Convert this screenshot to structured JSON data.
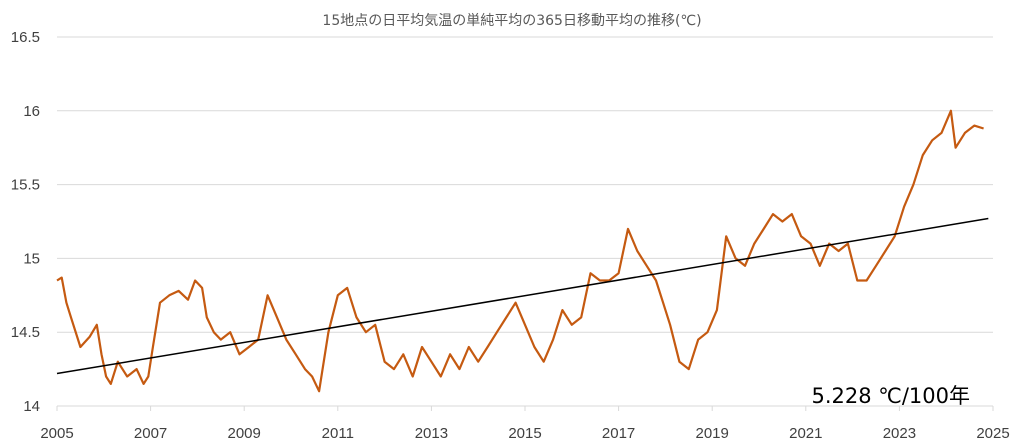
{
  "chart_data": {
    "type": "line",
    "title": "15地点の日平均気温の単純平均の365日移動平均の推移(℃)",
    "xlabel": "",
    "ylabel": "",
    "xlim": [
      2005,
      2025
    ],
    "ylim": [
      14,
      16.5
    ],
    "x_ticks": [
      "2005",
      "2007",
      "2009",
      "2011",
      "2013",
      "2015",
      "2017",
      "2019",
      "2021",
      "2023",
      "2025"
    ],
    "y_ticks": [
      "14",
      "14.5",
      "15",
      "15.5",
      "16",
      "16.5"
    ],
    "grid": true,
    "legend": "none",
    "annotation": "5.228 ℃/100年",
    "series": [
      {
        "color": "#c55a11",
        "x": [
          2005.0,
          2005.1,
          2005.2,
          2005.3,
          2005.5,
          2005.7,
          2005.85,
          2005.95,
          2006.05,
          2006.15,
          2006.3,
          2006.5,
          2006.7,
          2006.85,
          2006.95,
          2007.05,
          2007.2,
          2007.4,
          2007.6,
          2007.8,
          2007.95,
          2008.1,
          2008.2,
          2008.35,
          2008.5,
          2008.7,
          2008.9,
          2009.1,
          2009.3,
          2009.5,
          2009.7,
          2009.9,
          2010.1,
          2010.3,
          2010.45,
          2010.6,
          2010.8,
          2011.0,
          2011.2,
          2011.4,
          2011.6,
          2011.8,
          2012.0,
          2012.2,
          2012.4,
          2012.6,
          2012.8,
          2013.0,
          2013.2,
          2013.4,
          2013.6,
          2013.8,
          2014.0,
          2014.2,
          2014.4,
          2014.6,
          2014.8,
          2015.0,
          2015.2,
          2015.4,
          2015.6,
          2015.8,
          2016.0,
          2016.2,
          2016.4,
          2016.6,
          2016.8,
          2017.0,
          2017.2,
          2017.4,
          2017.6,
          2017.8,
          2017.95,
          2018.1,
          2018.3,
          2018.5,
          2018.7,
          2018.9,
          2019.1,
          2019.3,
          2019.5,
          2019.7,
          2019.9,
          2020.1,
          2020.3,
          2020.5,
          2020.7,
          2020.9,
          2021.1,
          2021.3,
          2021.5,
          2021.7,
          2021.9,
          2022.1,
          2022.3,
          2022.5,
          2022.7,
          2022.9,
          2023.1,
          2023.3,
          2023.5,
          2023.7,
          2023.9,
          2024.1,
          2024.2,
          2024.4,
          2024.6,
          2024.8
        ],
        "values": [
          14.85,
          14.87,
          14.7,
          14.6,
          14.4,
          14.47,
          14.55,
          14.35,
          14.2,
          14.15,
          14.3,
          14.2,
          14.25,
          14.15,
          14.2,
          14.4,
          14.7,
          14.75,
          14.78,
          14.72,
          14.85,
          14.8,
          14.6,
          14.5,
          14.45,
          14.5,
          14.35,
          14.4,
          14.45,
          14.75,
          14.6,
          14.45,
          14.35,
          14.25,
          14.2,
          14.1,
          14.5,
          14.75,
          14.8,
          14.6,
          14.5,
          14.55,
          14.3,
          14.25,
          14.35,
          14.2,
          14.4,
          14.3,
          14.2,
          14.35,
          14.25,
          14.4,
          14.3,
          14.4,
          14.5,
          14.6,
          14.7,
          14.55,
          14.4,
          14.3,
          14.45,
          14.65,
          14.55,
          14.6,
          14.9,
          14.85,
          14.85,
          14.9,
          15.2,
          15.05,
          14.95,
          14.85,
          14.7,
          14.55,
          14.3,
          14.25,
          14.45,
          14.5,
          14.65,
          15.15,
          15.0,
          14.95,
          15.1,
          15.2,
          15.3,
          15.25,
          15.3,
          15.15,
          15.1,
          14.95,
          15.1,
          15.05,
          15.1,
          14.85,
          14.85,
          14.95,
          15.05,
          15.15,
          15.35,
          15.5,
          15.7,
          15.8,
          15.85,
          16.0,
          15.75,
          15.85,
          15.9,
          15.88
        ]
      }
    ],
    "trendline": {
      "color": "#000000",
      "x": [
        2005.0,
        2024.9
      ],
      "values": [
        14.22,
        15.27
      ]
    }
  }
}
